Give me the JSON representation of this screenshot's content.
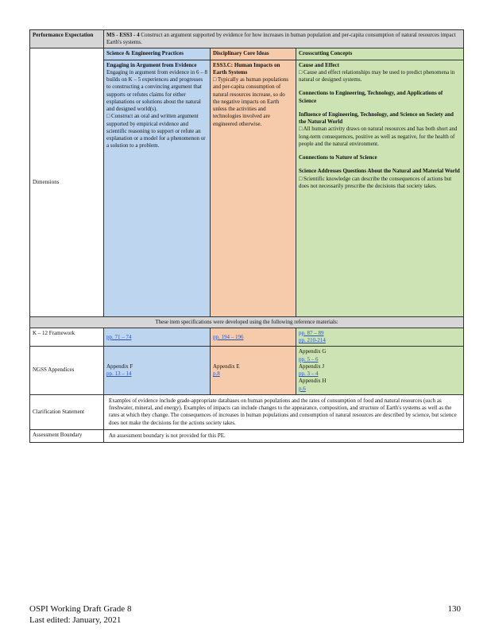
{
  "pe": {
    "label": "Performance Expectation",
    "code": "MS - ESS3 - 4",
    "text": "Construct an argument supported by evidence for how increases in human population and per-capita consumption of natural resources impact Earth's systems."
  },
  "dimensions": {
    "label": "Dimensions",
    "sep": {
      "header": "Science & Engineering Practices",
      "title": "Engaging in Argument from Evidence",
      "intro": "Engaging in argument from evidence in 6 – 8 builds on K – 5 experiences and progresses to constructing a convincing argument that supports or refutes claims for either explanations or solutions about the natural and designed world(s).",
      "bullet": "Construct an oral and written argument supported by empirical evidence and scientific reasoning to support or refute an explanation or a model for a phenomenon or a solution to a problem."
    },
    "dci": {
      "header": "Disciplinary Core Ideas",
      "title": "ESS3.C: Human Impacts on Earth Systems",
      "bullet": "Typically as human populations and per-capita consumption of natural resources increase, so do the negative impacts on Earth unless the activities and technologies involved are engineered otherwise."
    },
    "ccc": {
      "header": "Crosscutting Concepts",
      "sections": [
        {
          "title": "Cause and Effect",
          "bullet": "Cause and effect relationships may be used to predict phenomena in natural or designed systems."
        },
        {
          "title": "Connections to Engineering, Technology, and Applications of Science",
          "bullet": ""
        },
        {
          "title": "Influence of Engineering, Technology, and Science on Society and the Natural World",
          "bullet": "All human activity draws on natural resources and has both short and long-term consequences, positive as well as negative, for the health of people and the natural environment."
        },
        {
          "title": "Connections to Nature of Science",
          "bullet": ""
        },
        {
          "title": "Science Addresses Questions About the Natural and Material World",
          "bullet": "Scientific knowledge can describe the consequences of actions but does not necessarily prescribe the decisions that society takes."
        }
      ]
    }
  },
  "note": "These item specifications were developed using the following reference materials:",
  "framework": {
    "label": "K – 12 Framework",
    "sep": "pp. 71 – 74",
    "dci": "pp. 194 – 196",
    "ccc1": "pp. 87 – 89",
    "ccc2": "pp. 210-214"
  },
  "appendices": {
    "label": "NGSS Appendices",
    "sep_title": "Appendix F",
    "sep_pages": "pp. 13 – 14",
    "dci_title": "Appendix E",
    "dci_pages": "p.8",
    "ccc": [
      {
        "title": "Appendix G",
        "pages": "pp. 5 – 6"
      },
      {
        "title": "Appendix J",
        "pages": "pp. 3 – 4"
      },
      {
        "title": "Appendix H",
        "pages": "p.6"
      }
    ]
  },
  "clarification": {
    "label": "Clarification Statement",
    "text": "Examples of evidence include grade-appropriate databases on human populations and the rates of consumption of food and natural resources (such as freshwater, mineral, and energy). Examples of impacts can include changes to the appearance, composition, and structure of Earth's systems as well as the rates at which they change. The consequences of increases in human populations and consumption of natural resources are described by science, but science does not make the decisions for the actions society takes."
  },
  "assessment": {
    "label": "Assessment Boundary",
    "text": "An assessment boundary is not provided for this PE."
  },
  "footer": {
    "line1": "OSPI Working Draft Grade 8",
    "line2": "Last edited: January, 2021",
    "page": "130"
  }
}
